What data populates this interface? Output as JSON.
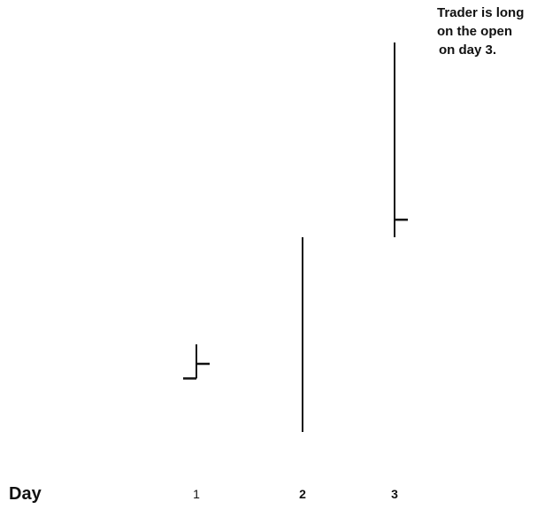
{
  "chart_data": {
    "type": "ohlc",
    "title": "",
    "xlabel": "Day",
    "ylabel": "",
    "categories": [
      "1",
      "2",
      "3"
    ],
    "series": [
      {
        "day": "1",
        "open": 11.5,
        "high": 15,
        "low": 11.5,
        "close": 13
      },
      {
        "day": "2",
        "open": null,
        "high": 26,
        "low": 6,
        "close": null
      },
      {
        "day": "3",
        "open": null,
        "high": 46,
        "low": 26,
        "close": 27.8
      }
    ],
    "ylim": [
      0,
      50
    ],
    "grid": false,
    "annotations": [
      {
        "lines": [
          "Trader is long",
          "on the open",
          "on day 3."
        ],
        "placement": "top-right"
      }
    ]
  },
  "colors": {
    "bars": "#111111",
    "text": "#111111"
  }
}
